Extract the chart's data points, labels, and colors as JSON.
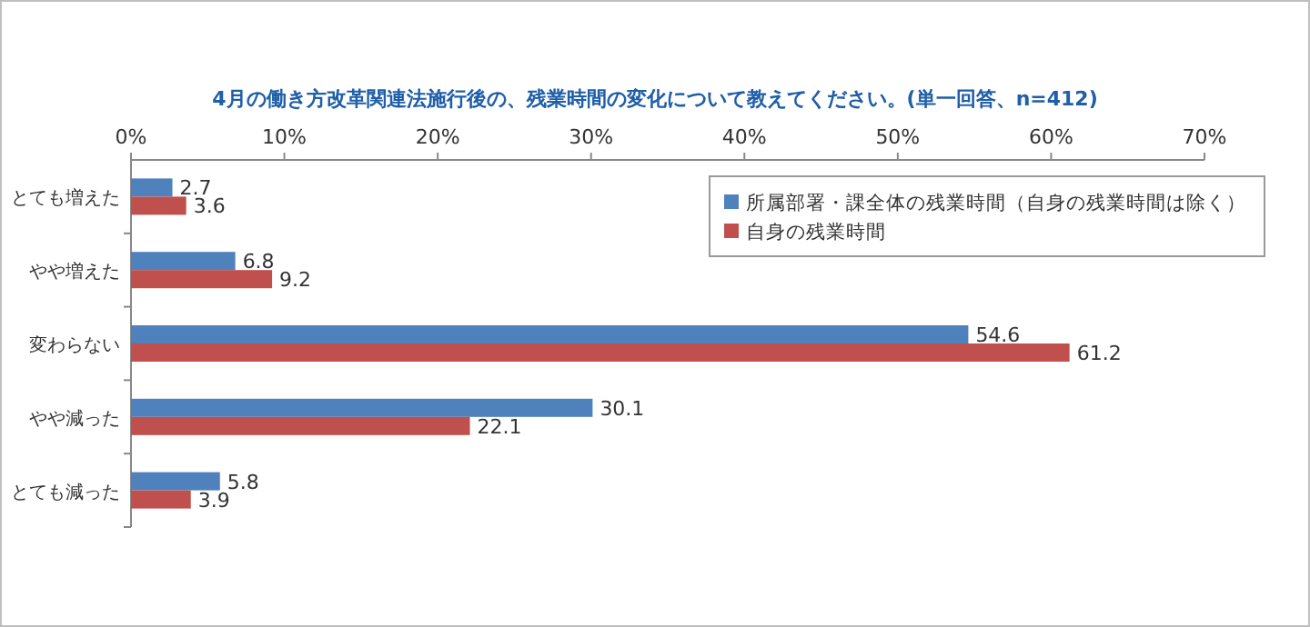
{
  "chart_data": {
    "type": "bar",
    "orientation": "horizontal",
    "title": "4月の働き方改革関連法施行後の、残業時間の変化について教えてください。(単一回答、n=412)",
    "categories": [
      "とても増えた",
      "やや増えた",
      "変わらない",
      "やや減った",
      "とても減った"
    ],
    "series": [
      {
        "name": "所属部署・課全体の残業時間（自身の残業時間は除く）",
        "color": "#4f81bd",
        "values": [
          2.7,
          6.8,
          54.6,
          30.1,
          5.8
        ]
      },
      {
        "name": "自身の残業時間",
        "color": "#c0504d",
        "values": [
          3.6,
          9.2,
          61.2,
          22.1,
          3.9
        ]
      }
    ],
    "xlim": [
      0,
      70
    ],
    "xticks": [
      {
        "value": 0,
        "label": "0%"
      },
      {
        "value": 10,
        "label": "10%"
      },
      {
        "value": 20,
        "label": "20%"
      },
      {
        "value": 30,
        "label": "30%"
      },
      {
        "value": 40,
        "label": "40%"
      },
      {
        "value": 50,
        "label": "50%"
      },
      {
        "value": 60,
        "label": "60%"
      },
      {
        "value": 70,
        "label": "70%"
      }
    ],
    "data_labels": true,
    "legend": "top right"
  }
}
